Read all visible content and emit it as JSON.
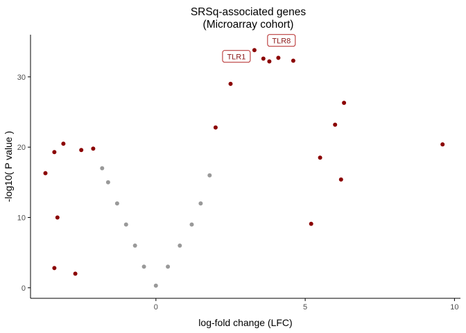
{
  "chart_data": {
    "type": "scatter",
    "title_line1": "SRSq-associated genes",
    "title_line2": "(Microarray cohort)",
    "xlabel": "log-fold change (LFC)",
    "ylabel": "-log10( P value )",
    "xlim": [
      -4.2,
      10.2
    ],
    "ylim": [
      -1.5,
      36
    ],
    "xticks": [
      0,
      5,
      10
    ],
    "yticks": [
      0,
      10,
      20,
      30
    ],
    "colors": {
      "significant": "#8b0000",
      "nonsignificant": "#999999",
      "annotation_border": "#b22222",
      "annotation_text": "#8b1a1a"
    },
    "series": [
      {
        "category": "nonsignificant",
        "color": "#999999",
        "points": [
          [
            -1.8,
            17
          ],
          [
            -1.6,
            15
          ],
          [
            -1.3,
            12
          ],
          [
            -1.0,
            9
          ],
          [
            -0.7,
            6
          ],
          [
            -0.4,
            3
          ],
          [
            0,
            0.3
          ],
          [
            0.4,
            3
          ],
          [
            0.8,
            6
          ],
          [
            1.2,
            9
          ],
          [
            1.5,
            12
          ],
          [
            1.8,
            16
          ]
        ]
      },
      {
        "category": "significant",
        "color": "#8b0000",
        "points": [
          [
            -3.7,
            16.3
          ],
          [
            -3.4,
            19.3
          ],
          [
            -3.1,
            20.5
          ],
          [
            -2.5,
            19.6
          ],
          [
            -2.1,
            19.8
          ],
          [
            -3.3,
            10.0
          ],
          [
            -3.4,
            2.8
          ],
          [
            -2.7,
            2.0
          ],
          [
            2.0,
            22.8
          ],
          [
            2.5,
            29.0
          ],
          [
            3.0,
            33.1
          ],
          [
            3.3,
            33.8
          ],
          [
            3.6,
            32.6
          ],
          [
            3.8,
            32.2
          ],
          [
            4.1,
            32.7
          ],
          [
            4.6,
            32.3
          ],
          [
            5.2,
            9.1
          ],
          [
            5.5,
            18.5
          ],
          [
            6.0,
            23.2
          ],
          [
            6.3,
            26.3
          ],
          [
            6.2,
            15.4
          ],
          [
            9.6,
            20.4
          ]
        ]
      }
    ],
    "annotations": [
      {
        "label": "TLR1",
        "x": 3.3,
        "y": 33.8
      },
      {
        "label": "TLR8",
        "x": 3.6,
        "y": 34.1
      }
    ]
  }
}
